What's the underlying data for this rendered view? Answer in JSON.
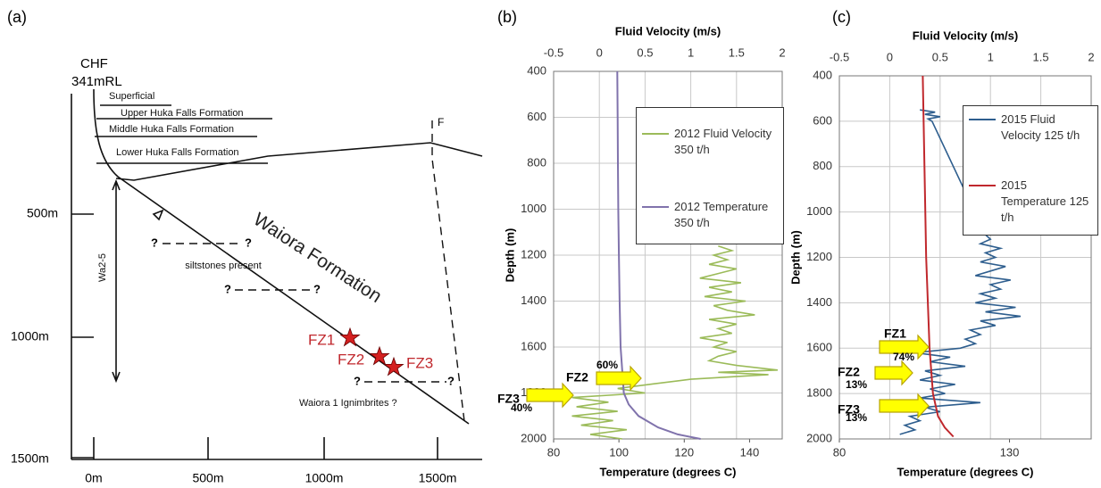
{
  "diagram_a": {
    "panel_label": "(a)",
    "well": "CHF",
    "elevation": "341mRL",
    "layers": [
      "Superficial",
      "Upper Huka Falls Formation",
      "Middle Huka Falls Formation",
      "Lower Huka Falls Formation"
    ],
    "fault": "F",
    "formation": "Waiora Formation",
    "siltstones": "siltstones present",
    "well_section": "Wa2-5",
    "zones": [
      "FZ1",
      "FZ2",
      "FZ3"
    ],
    "ignimbrites": "Waiora 1 Ignimbrites ?",
    "question_marks": [
      "?",
      "?",
      "?",
      "?",
      "?",
      "?"
    ],
    "depth_scale": [
      "500m",
      "1000m",
      "1500m"
    ],
    "distance_scale": [
      "0m",
      "500m",
      "1000m",
      "1500m"
    ]
  },
  "chart_data": [
    {
      "type": "line",
      "panel_label": "(b)",
      "xlabel": "Fluid Velocity (m/s)",
      "x2label": "Temperature (degrees C)",
      "ylabel": "Depth (m)",
      "xlim": [
        -0.5,
        2
      ],
      "xticks": [
        -0.5,
        0,
        0.5,
        1,
        1.5,
        2
      ],
      "x2lim": [
        80,
        150
      ],
      "x2ticks": [
        80,
        100,
        120,
        140
      ],
      "ylim": [
        2000,
        400
      ],
      "yticks": [
        400,
        600,
        800,
        1000,
        1200,
        1400,
        1600,
        1800,
        2000
      ],
      "grid": true,
      "series": [
        {
          "name": "2012 Fluid Velocity 350 t/h",
          "color": "#9bbb59",
          "axis": "x",
          "depth": [
            1160,
            1180,
            1200,
            1220,
            1240,
            1260,
            1280,
            1300,
            1320,
            1340,
            1360,
            1380,
            1400,
            1420,
            1440,
            1460,
            1480,
            1500,
            1520,
            1540,
            1560,
            1580,
            1600,
            1620,
            1640,
            1660,
            1680,
            1700,
            1710,
            1720,
            1740,
            1760,
            1780,
            1800,
            1820,
            1840,
            1860,
            1880,
            1900,
            1920,
            1940,
            1960,
            1980,
            2000
          ],
          "values": [
            1.3,
            1.45,
            1.25,
            1.4,
            1.2,
            1.5,
            1.3,
            1.1,
            1.55,
            1.2,
            1.45,
            1.15,
            1.6,
            1.25,
            1.4,
            1.7,
            1.2,
            1.5,
            1.3,
            1.45,
            1.1,
            1.4,
            1.25,
            1.5,
            1.3,
            1.2,
            1.5,
            1.95,
            1.3,
            1.85,
            1.0,
            0.6,
            0.2,
            0.5,
            -0.3,
            0.1,
            -0.25,
            0.2,
            -0.3,
            0.15,
            -0.2,
            0.3,
            -0.1,
            0.25
          ]
        },
        {
          "name": "2012 Temperature 350 t/h",
          "color": "#8073ac",
          "axis": "x2",
          "depth": [
            400,
            600,
            800,
            1000,
            1200,
            1400,
            1600,
            1700,
            1800,
            1850,
            1900,
            1950,
            1980,
            2000
          ],
          "values": [
            99.5,
            99.6,
            99.7,
            99.8,
            100,
            100.2,
            100.5,
            101,
            101.5,
            103,
            106,
            112,
            118,
            125
          ]
        }
      ],
      "annotations": [
        {
          "zone": "FZ2",
          "share": "60%"
        },
        {
          "zone": "FZ3",
          "share": "40%"
        }
      ]
    },
    {
      "type": "line",
      "panel_label": "(c)",
      "xlabel": "Fluid Velocity (m/s)",
      "x2label": "Temperature (degrees C)",
      "ylabel": "Depth (m)",
      "xlim": [
        -0.5,
        2
      ],
      "xticks": [
        -0.5,
        0,
        0.5,
        1,
        1.5,
        2
      ],
      "x2lim": [
        80,
        154
      ],
      "x2ticks": [
        80,
        130
      ],
      "ylim": [
        2000,
        400
      ],
      "yticks": [
        400,
        600,
        800,
        1000,
        1200,
        1400,
        1600,
        1800,
        2000
      ],
      "grid": true,
      "series": [
        {
          "name": "2015 Fluid Velocity 125 t/h",
          "color": "#2e5e8e",
          "axis": "x",
          "depth": [
            550,
            560,
            570,
            580,
            590,
            600,
            1100,
            1120,
            1140,
            1160,
            1180,
            1200,
            1220,
            1240,
            1260,
            1280,
            1300,
            1320,
            1340,
            1360,
            1380,
            1400,
            1420,
            1440,
            1460,
            1480,
            1500,
            1520,
            1540,
            1560,
            1580,
            1600,
            1620,
            1640,
            1660,
            1680,
            1700,
            1720,
            1740,
            1760,
            1780,
            1800,
            1820,
            1840,
            1860,
            1880,
            1900,
            1920,
            1940,
            1960,
            1980
          ],
          "values": [
            0.3,
            0.45,
            0.35,
            0.5,
            0.38,
            0.42,
            0.95,
            1.0,
            0.9,
            1.1,
            0.95,
            1.05,
            0.9,
            1.15,
            1.0,
            0.85,
            1.2,
            1.0,
            1.1,
            0.9,
            1.05,
            0.85,
            1.25,
            0.95,
            1.3,
            0.9,
            1.05,
            0.8,
            0.9,
            0.75,
            0.85,
            0.7,
            0.25,
            0.6,
            0.4,
            0.75,
            0.35,
            0.5,
            0.3,
            0.65,
            0.4,
            0.55,
            0.3,
            0.9,
            0.35,
            0.5,
            0.2,
            0.3,
            0.15,
            0.25,
            0.1
          ]
        },
        {
          "name": "2015 Temperature 125 t/h",
          "color": "#c0282d",
          "axis": "x2",
          "depth": [
            400,
            800,
            1200,
            1600,
            1800,
            1900,
            1950,
            1990
          ],
          "values": [
            104.5,
            105,
            105.5,
            106.5,
            107.5,
            109,
            111,
            113.5
          ]
        }
      ],
      "annotations": [
        {
          "zone": "FZ1",
          "share": "74%"
        },
        {
          "zone": "FZ2",
          "share": "13%"
        },
        {
          "zone": "FZ3",
          "share": "13%"
        }
      ]
    }
  ]
}
